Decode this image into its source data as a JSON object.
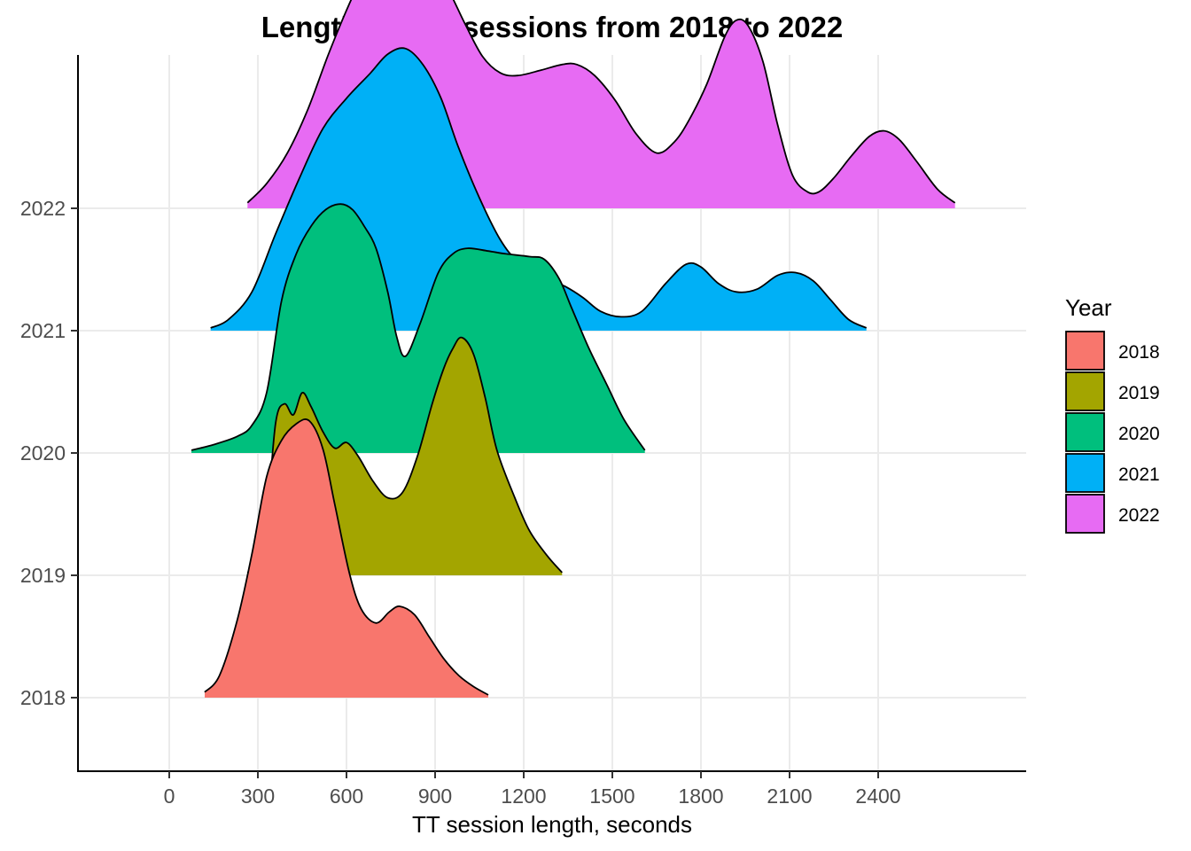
{
  "chart_data": {
    "type": "ridgeline",
    "title": "Lengths of TT sessions from 2018 to 2022",
    "xlabel": "TT session length, seconds",
    "ylabel": "",
    "xlim": [
      -240,
      2700
    ],
    "x_ticks": [
      0,
      300,
      600,
      900,
      1200,
      1500,
      1800,
      2100,
      2400
    ],
    "x_tick_labels": [
      "0",
      "300",
      "600",
      "900",
      "1200",
      "1500",
      "1800",
      "2100",
      "2400"
    ],
    "y_categories": [
      "2018",
      "2019",
      "2020",
      "2021",
      "2022"
    ],
    "grid": true,
    "legend": {
      "title": "Year",
      "position": "right",
      "entries": [
        "2018",
        "2019",
        "2020",
        "2021",
        "2022"
      ]
    },
    "series": [
      {
        "name": "2018",
        "color": "#F8766D",
        "points": [
          [
            120,
            0.02
          ],
          [
            170,
            0.08
          ],
          [
            230,
            0.28
          ],
          [
            280,
            0.52
          ],
          [
            330,
            0.8
          ],
          [
            380,
            0.93
          ],
          [
            430,
            0.99
          ],
          [
            475,
            1.0
          ],
          [
            520,
            0.9
          ],
          [
            560,
            0.7
          ],
          [
            610,
            0.45
          ],
          [
            650,
            0.32
          ],
          [
            700,
            0.27
          ],
          [
            745,
            0.31
          ],
          [
            780,
            0.33
          ],
          [
            830,
            0.3
          ],
          [
            880,
            0.22
          ],
          [
            930,
            0.14
          ],
          [
            980,
            0.08
          ],
          [
            1030,
            0.04
          ],
          [
            1080,
            0.01
          ]
        ]
      },
      {
        "name": "2019",
        "color": "#A3A500",
        "points": [
          [
            265,
            0.01
          ],
          [
            300,
            0.05
          ],
          [
            330,
            0.2
          ],
          [
            360,
            0.55
          ],
          [
            390,
            0.62
          ],
          [
            420,
            0.58
          ],
          [
            450,
            0.66
          ],
          [
            480,
            0.61
          ],
          [
            520,
            0.52
          ],
          [
            560,
            0.46
          ],
          [
            600,
            0.48
          ],
          [
            640,
            0.43
          ],
          [
            690,
            0.34
          ],
          [
            740,
            0.28
          ],
          [
            790,
            0.3
          ],
          [
            840,
            0.43
          ],
          [
            890,
            0.62
          ],
          [
            930,
            0.75
          ],
          [
            960,
            0.82
          ],
          [
            990,
            0.86
          ],
          [
            1030,
            0.8
          ],
          [
            1070,
            0.64
          ],
          [
            1110,
            0.45
          ],
          [
            1170,
            0.28
          ],
          [
            1220,
            0.16
          ],
          [
            1280,
            0.07
          ],
          [
            1330,
            0.01
          ]
        ]
      },
      {
        "name": "2020",
        "color": "#00BF7D",
        "points": [
          [
            75,
            0.01
          ],
          [
            150,
            0.03
          ],
          [
            230,
            0.06
          ],
          [
            280,
            0.1
          ],
          [
            330,
            0.22
          ],
          [
            380,
            0.55
          ],
          [
            430,
            0.72
          ],
          [
            480,
            0.82
          ],
          [
            530,
            0.88
          ],
          [
            580,
            0.9
          ],
          [
            620,
            0.88
          ],
          [
            660,
            0.82
          ],
          [
            700,
            0.74
          ],
          [
            740,
            0.58
          ],
          [
            770,
            0.42
          ],
          [
            800,
            0.35
          ],
          [
            850,
            0.47
          ],
          [
            910,
            0.65
          ],
          [
            960,
            0.72
          ],
          [
            1010,
            0.74
          ],
          [
            1080,
            0.73
          ],
          [
            1140,
            0.72
          ],
          [
            1220,
            0.71
          ],
          [
            1270,
            0.7
          ],
          [
            1320,
            0.63
          ],
          [
            1360,
            0.53
          ],
          [
            1420,
            0.38
          ],
          [
            1480,
            0.25
          ],
          [
            1540,
            0.12
          ],
          [
            1610,
            0.01
          ]
        ]
      },
      {
        "name": "2021",
        "color": "#00B0F6",
        "points": [
          [
            140,
            0.01
          ],
          [
            200,
            0.04
          ],
          [
            280,
            0.14
          ],
          [
            360,
            0.35
          ],
          [
            440,
            0.55
          ],
          [
            520,
            0.73
          ],
          [
            600,
            0.84
          ],
          [
            680,
            0.93
          ],
          [
            740,
            1.0
          ],
          [
            800,
            1.02
          ],
          [
            860,
            0.96
          ],
          [
            920,
            0.84
          ],
          [
            980,
            0.66
          ],
          [
            1050,
            0.48
          ],
          [
            1120,
            0.33
          ],
          [
            1180,
            0.25
          ],
          [
            1260,
            0.2
          ],
          [
            1340,
            0.16
          ],
          [
            1400,
            0.12
          ],
          [
            1460,
            0.07
          ],
          [
            1530,
            0.05
          ],
          [
            1600,
            0.07
          ],
          [
            1680,
            0.17
          ],
          [
            1750,
            0.24
          ],
          [
            1800,
            0.23
          ],
          [
            1860,
            0.17
          ],
          [
            1920,
            0.14
          ],
          [
            1990,
            0.15
          ],
          [
            2060,
            0.2
          ],
          [
            2120,
            0.21
          ],
          [
            2180,
            0.18
          ],
          [
            2240,
            0.11
          ],
          [
            2300,
            0.04
          ],
          [
            2360,
            0.01
          ]
        ]
      },
      {
        "name": "2022",
        "color": "#E76BF3",
        "points": [
          [
            265,
            0.02
          ],
          [
            330,
            0.09
          ],
          [
            400,
            0.2
          ],
          [
            470,
            0.36
          ],
          [
            540,
            0.56
          ],
          [
            610,
            0.74
          ],
          [
            670,
            0.87
          ],
          [
            720,
            0.92
          ],
          [
            770,
            0.93
          ],
          [
            830,
            0.91
          ],
          [
            890,
            0.87
          ],
          [
            940,
            0.8
          ],
          [
            1000,
            0.67
          ],
          [
            1060,
            0.55
          ],
          [
            1120,
            0.49
          ],
          [
            1180,
            0.48
          ],
          [
            1260,
            0.5
          ],
          [
            1330,
            0.52
          ],
          [
            1380,
            0.52
          ],
          [
            1440,
            0.48
          ],
          [
            1510,
            0.39
          ],
          [
            1580,
            0.27
          ],
          [
            1650,
            0.2
          ],
          [
            1710,
            0.24
          ],
          [
            1760,
            0.32
          ],
          [
            1820,
            0.45
          ],
          [
            1880,
            0.62
          ],
          [
            1920,
            0.68
          ],
          [
            1960,
            0.66
          ],
          [
            2010,
            0.53
          ],
          [
            2060,
            0.3
          ],
          [
            2110,
            0.12
          ],
          [
            2160,
            0.06
          ],
          [
            2200,
            0.06
          ],
          [
            2250,
            0.11
          ],
          [
            2310,
            0.19
          ],
          [
            2370,
            0.26
          ],
          [
            2420,
            0.28
          ],
          [
            2470,
            0.25
          ],
          [
            2530,
            0.17
          ],
          [
            2600,
            0.07
          ],
          [
            2660,
            0.02
          ]
        ]
      }
    ]
  }
}
